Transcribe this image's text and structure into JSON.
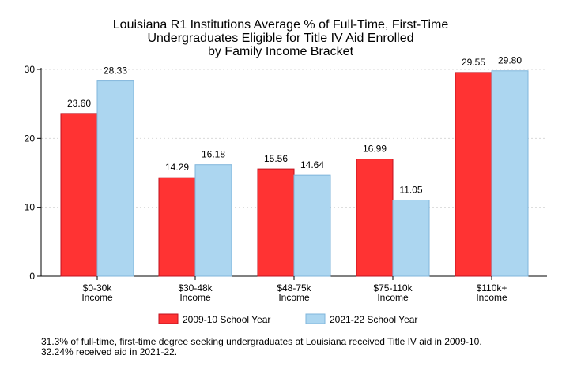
{
  "chart_data": {
    "type": "bar",
    "title_lines": [
      "Louisiana R1 Institutions Average % of Full-Time, First-Time",
      "Undergraduates Eligible for Title IV Aid Enrolled",
      "by Family Income Bracket"
    ],
    "categories": [
      [
        "$0-30k",
        "Income"
      ],
      [
        "$30-48k",
        "Income"
      ],
      [
        "$48-75k",
        "Income"
      ],
      [
        "$75-110k",
        "Income"
      ],
      [
        "$110k+",
        "Income"
      ]
    ],
    "series": [
      {
        "name": "2009-10 School Year",
        "color": "#ff3333",
        "stroke": "#c1121f",
        "values": [
          23.6,
          14.29,
          15.56,
          16.99,
          29.55
        ],
        "labels": [
          "23.60",
          "14.29",
          "15.56",
          "16.99",
          "29.55"
        ]
      },
      {
        "name": "2021-22 School Year",
        "color": "#acd6f0",
        "stroke": "#7fb5db",
        "values": [
          28.33,
          16.18,
          14.64,
          11.05,
          29.8
        ],
        "labels": [
          "28.33",
          "16.18",
          "14.64",
          "11.05",
          "29.80"
        ]
      }
    ],
    "ylim": [
      0,
      30
    ],
    "yticks": [
      "0",
      "10",
      "20",
      "30"
    ],
    "grid": true,
    "legend_position": "bottom"
  },
  "note": "31.3% of full-time, first-time degree seeking undergraduates at Louisiana received Title IV aid in 2009-10. 32.24% received aid in 2021-22."
}
